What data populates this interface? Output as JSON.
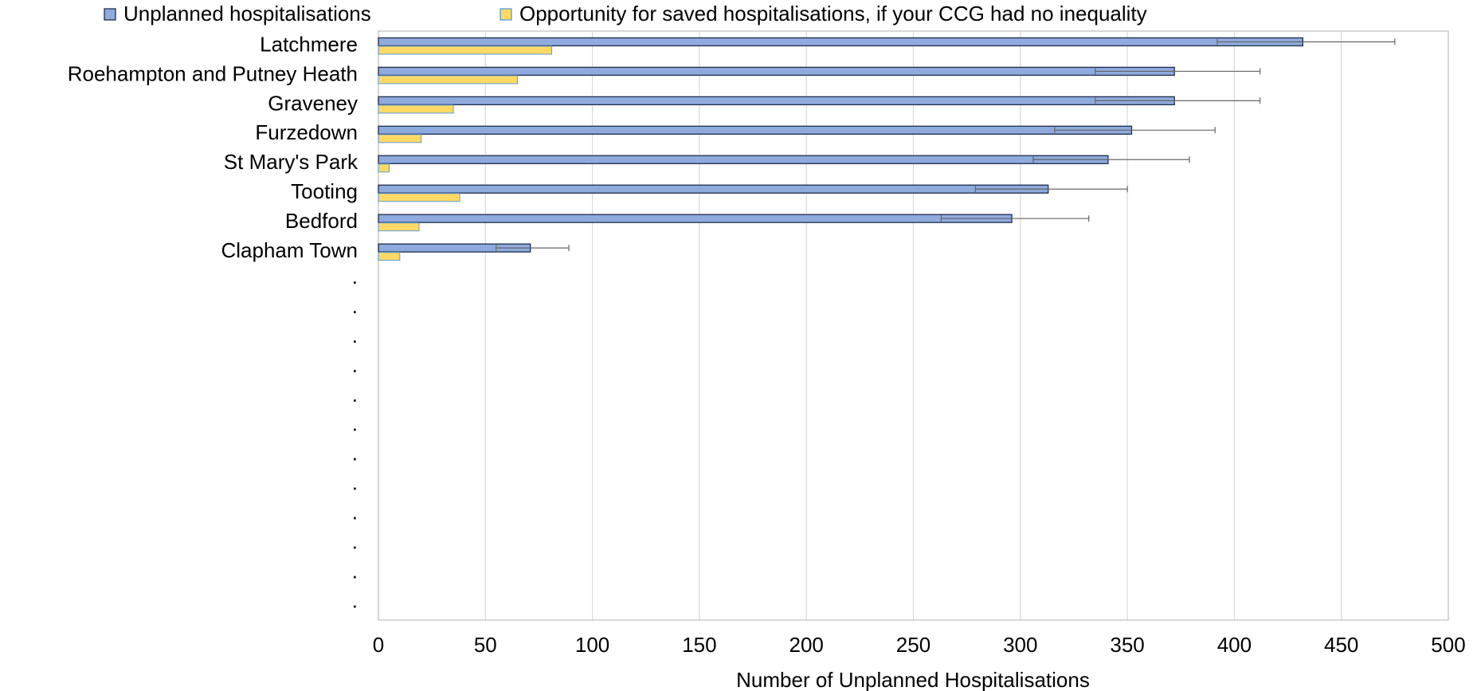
{
  "chart_data": {
    "type": "hbar",
    "x_label": "Number of Unplanned Hospitalisations",
    "categories": [
      "Latchmere",
      "Roehampton and Putney Heath",
      "Graveney",
      "Furzedown",
      "St Mary's Park",
      "Tooting",
      "Bedford",
      "Clapham Town",
      ".",
      ".",
      ".",
      ".",
      ".",
      ".",
      ".",
      ".",
      ".",
      ".",
      ".",
      "."
    ],
    "series": [
      {
        "name": "Unplanned hospitalisations",
        "color": "#8faadc",
        "values": [
          432,
          372,
          372,
          352,
          341,
          313,
          296,
          71,
          null,
          null,
          null,
          null,
          null,
          null,
          null,
          null,
          null,
          null,
          null,
          null
        ],
        "error_lower": [
          392,
          335,
          335,
          316,
          306,
          279,
          263,
          55,
          null,
          null,
          null,
          null,
          null,
          null,
          null,
          null,
          null,
          null,
          null,
          null
        ],
        "error_upper": [
          475,
          412,
          412,
          391,
          379,
          350,
          332,
          89,
          null,
          null,
          null,
          null,
          null,
          null,
          null,
          null,
          null,
          null,
          null,
          null
        ]
      },
      {
        "name": "Opportunity for saved hospitalisations, if your CCG had no inequality",
        "color": "#ffd966",
        "values": [
          81,
          65,
          35,
          20,
          5,
          38,
          19,
          10,
          null,
          null,
          null,
          null,
          null,
          null,
          null,
          null,
          null,
          null,
          null,
          null
        ]
      }
    ],
    "xlim": [
      0,
      500
    ],
    "xticks": [
      0,
      50,
      100,
      150,
      200,
      250,
      300,
      350,
      400,
      450,
      500
    ],
    "grid": true
  }
}
